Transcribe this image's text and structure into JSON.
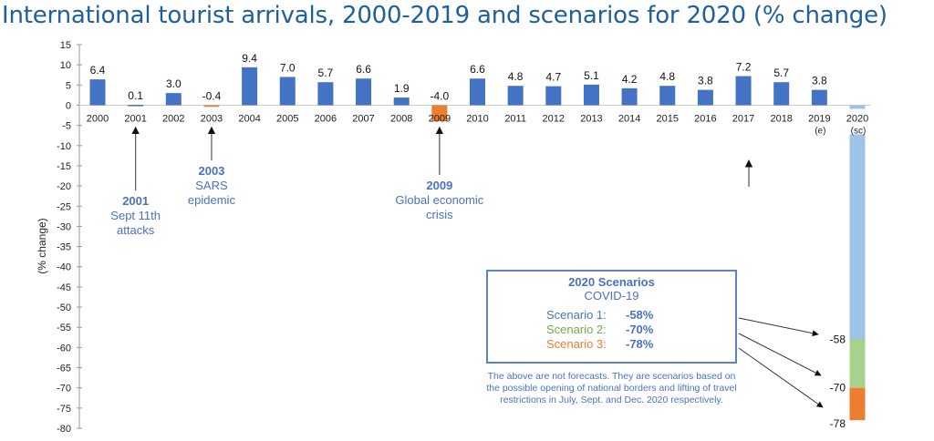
{
  "chart_data": {
    "type": "bar",
    "title": "International tourist arrivals, 2000-2019 and scenarios for 2020 (% change)",
    "xlabel": "",
    "ylabel": "(% change)",
    "ylim": [
      -80,
      15
    ],
    "yticks": [
      15,
      10,
      5,
      0,
      -5,
      -10,
      -15,
      -20,
      -25,
      -30,
      -35,
      -40,
      -45,
      -50,
      -55,
      -60,
      -65,
      -70,
      -75,
      -80
    ],
    "grid": false,
    "categories": [
      "2000",
      "2001",
      "2002",
      "2003",
      "2004",
      "2005",
      "2006",
      "2007",
      "2008",
      "2009",
      "2010",
      "2011",
      "2012",
      "2013",
      "2014",
      "2015",
      "2016",
      "2017",
      "2018",
      "2019",
      "2020"
    ],
    "category_sublabels": {
      "2019": "(e)",
      "2020": "(sc)"
    },
    "values": [
      6.4,
      0.1,
      3.0,
      -0.4,
      9.4,
      7.0,
      5.7,
      6.6,
      1.9,
      -4.0,
      6.6,
      4.8,
      4.7,
      5.1,
      4.2,
      4.8,
      3.8,
      7.2,
      5.7,
      3.8,
      null
    ],
    "value_labels": [
      "6.4",
      "0.1",
      "3.0",
      "-0.4",
      "9.4",
      "7.0",
      "5.7",
      "6.6",
      "1.9",
      "-4.0",
      "6.6",
      "4.8",
      "4.7",
      "5.1",
      "4.2",
      "4.8",
      "3.8",
      "7.2",
      "5.7",
      "3.8",
      ""
    ],
    "colors": {
      "positive": "#4472c4",
      "negative": "#ed7d31",
      "scenario1": "#9dc3e6",
      "scenario2": "#a9d18e",
      "scenario3": "#ed7d31"
    },
    "scenarios_2020": [
      {
        "name": "Scenario 1",
        "value": -58,
        "label": "-58",
        "color": "#9dc3e6"
      },
      {
        "name": "Scenario 2",
        "value": -70,
        "label": "-70",
        "color": "#a9d18e"
      },
      {
        "name": "Scenario 3",
        "value": -78,
        "label": "-78",
        "color": "#ed7d31"
      }
    ],
    "annotations": [
      {
        "category": "2001",
        "year": "2001",
        "lines": [
          "Sept 11th",
          "attacks"
        ]
      },
      {
        "category": "2003",
        "year": "2003",
        "lines": [
          "SARS",
          "epidemic"
        ]
      },
      {
        "category": "2009",
        "year": "2009",
        "lines": [
          "Global economic",
          "crisis"
        ]
      }
    ]
  },
  "scenario_box": {
    "title": "2020 Scenarios",
    "subtitle": "COVID-19",
    "rows": [
      {
        "label": "Scenario 1:",
        "value": "-58%",
        "color": "#4a72c0"
      },
      {
        "label": "Scenario 2:",
        "value": "-70%",
        "color": "#70ad47"
      },
      {
        "label": "Scenario 3:",
        "value": "-78%",
        "color": "#ed7d31"
      }
    ]
  },
  "note": "The above are not forecasts. They are scenarios based on the possible opening of national borders and lifting of travel restrictions in July, Sept. and Dec. 2020 respectively."
}
